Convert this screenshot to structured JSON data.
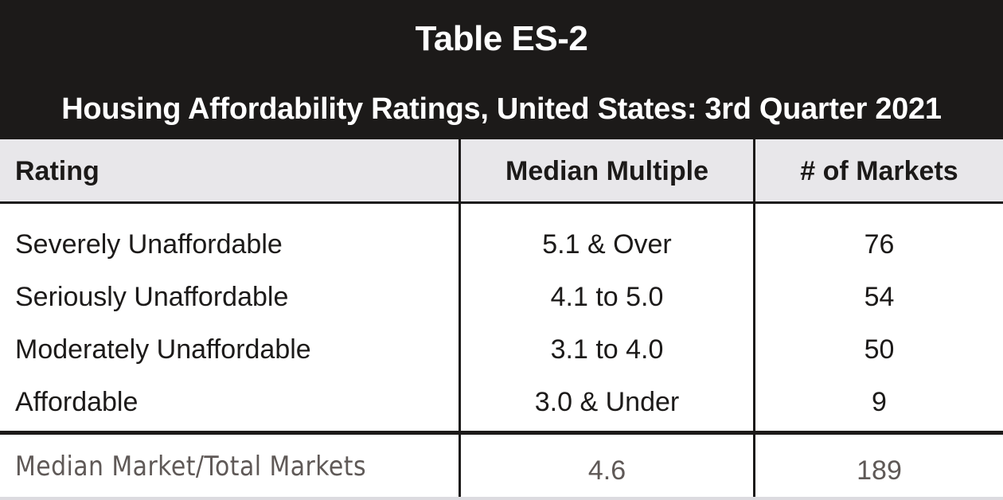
{
  "colors": {
    "header_bg": "#1c1a19",
    "header_text": "#ffffff",
    "column_header_bg": "#e8e7ea",
    "body_text": "#1c1a19",
    "total_text": "#5f5957"
  },
  "chart_data": {
    "type": "table",
    "title": "Table ES-2",
    "subtitle": "Housing Affordability Ratings, United States: 3rd Quarter 2021",
    "columns": [
      "Rating",
      "Median Multiple",
      "# of Markets"
    ],
    "rows": [
      [
        "Severely Unaffordable",
        "5.1 & Over",
        "76"
      ],
      [
        "Seriously Unaffordable",
        "4.1 to 5.0",
        "54"
      ],
      [
        "Moderately Unaffordable",
        "3.1 to 4.0",
        "50"
      ],
      [
        "Affordable",
        "3.0 & Under",
        "9"
      ]
    ],
    "total_row": [
      "Median Market/Total Markets",
      "4.6",
      "189"
    ]
  }
}
